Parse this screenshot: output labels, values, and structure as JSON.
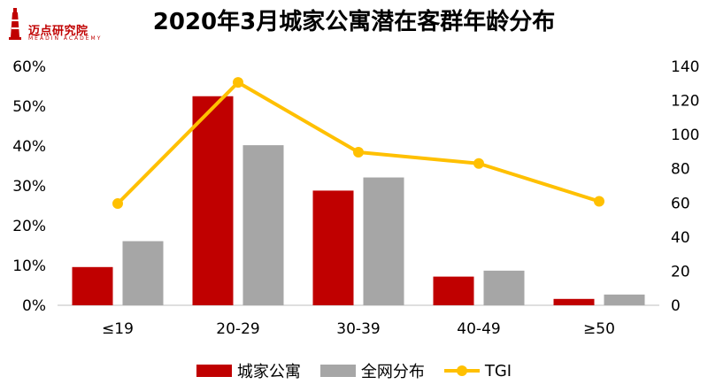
{
  "logo": {
    "name": "迈点研究院",
    "subtitle": "MEADIN ACADEMY"
  },
  "chart_data": {
    "type": "bar",
    "title": "2020年3月城家公寓潜在客群年龄分布",
    "categories": [
      "≤19",
      "20-29",
      "30-39",
      "40-49",
      "≥50"
    ],
    "series": [
      {
        "name": "城家公寓",
        "kind": "bar",
        "axis": "left",
        "color": "#C00000",
        "values": [
          9.6,
          52.5,
          28.8,
          7.2,
          1.6
        ]
      },
      {
        "name": "全网分布",
        "kind": "bar",
        "axis": "left",
        "color": "#A6A6A6",
        "values": [
          16.1,
          40.2,
          32.1,
          8.7,
          2.7
        ]
      },
      {
        "name": "TGI",
        "kind": "line",
        "axis": "right",
        "color": "#FFC000",
        "values": [
          59.6,
          130.6,
          89.7,
          83.1,
          60.9
        ]
      }
    ],
    "y_left": {
      "min": 0,
      "max": 60,
      "step": 10,
      "unit": "%"
    },
    "y_right": {
      "min": 0,
      "max": 140,
      "step": 20
    },
    "y_left_ticks": [
      "0%",
      "10%",
      "20%",
      "30%",
      "40%",
      "50%",
      "60%"
    ],
    "y_right_ticks": [
      "0",
      "20",
      "40",
      "60",
      "80",
      "100",
      "120",
      "140"
    ],
    "legend_position": "bottom",
    "grid": false
  }
}
